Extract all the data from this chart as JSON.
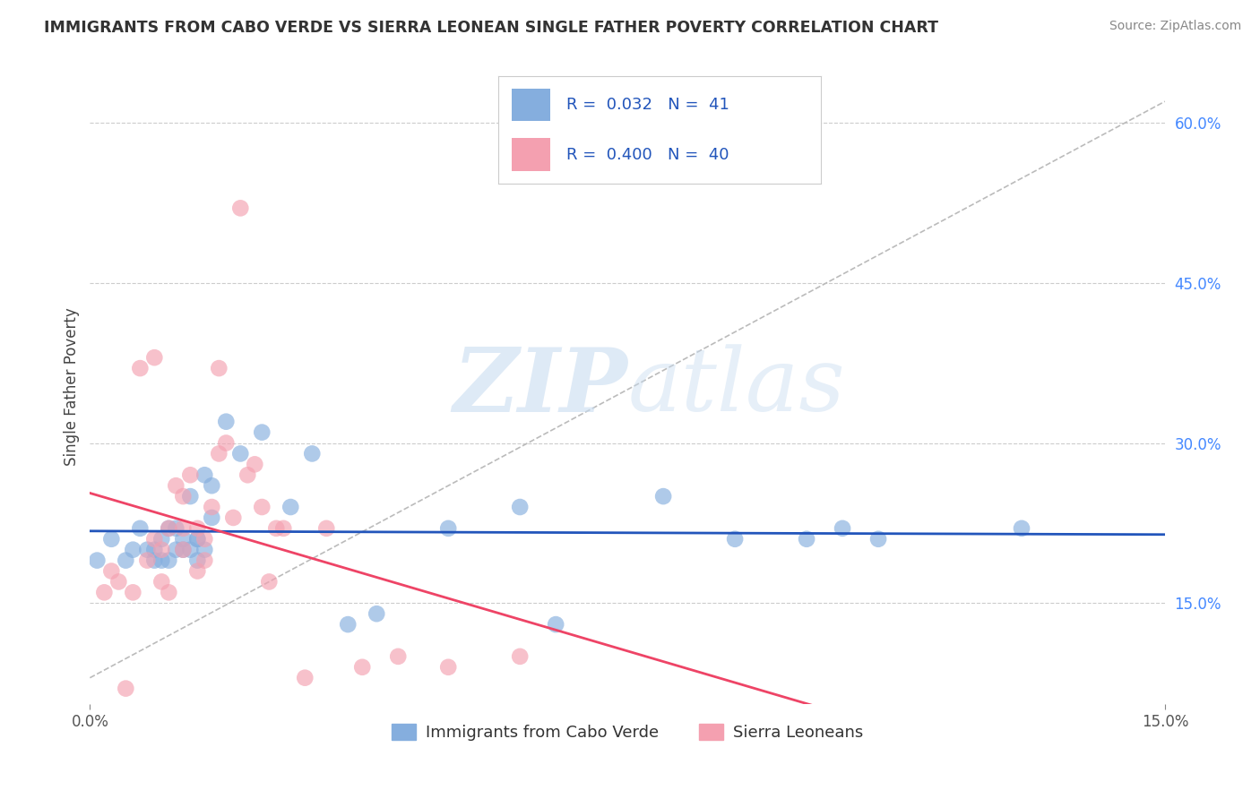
{
  "title": "IMMIGRANTS FROM CABO VERDE VS SIERRA LEONEAN SINGLE FATHER POVERTY CORRELATION CHART",
  "source": "Source: ZipAtlas.com",
  "ylabel": "Single Father Poverty",
  "yticks": [
    "15.0%",
    "30.0%",
    "45.0%",
    "60.0%"
  ],
  "ytick_vals": [
    0.15,
    0.3,
    0.45,
    0.6
  ],
  "xlim": [
    0.0,
    0.15
  ],
  "ylim": [
    0.055,
    0.65
  ],
  "legend_blue_label": "Immigrants from Cabo Verde",
  "legend_pink_label": "Sierra Leoneans",
  "legend_R_blue": "R =  0.032   N =  41",
  "legend_R_pink": "R =  0.400   N =  40",
  "blue_color": "#85AEDE",
  "pink_color": "#F4A0B0",
  "blue_line_color": "#2255BB",
  "pink_line_color": "#EE4466",
  "dashed_line_color": "#BBBBBB",
  "watermark_zip": "ZIP",
  "watermark_atlas": "atlas",
  "cabo_verde_x": [
    0.001,
    0.003,
    0.005,
    0.006,
    0.007,
    0.008,
    0.009,
    0.009,
    0.01,
    0.01,
    0.011,
    0.011,
    0.012,
    0.012,
    0.013,
    0.013,
    0.014,
    0.014,
    0.015,
    0.015,
    0.015,
    0.016,
    0.016,
    0.017,
    0.017,
    0.019,
    0.021,
    0.024,
    0.028,
    0.031,
    0.036,
    0.04,
    0.05,
    0.06,
    0.065,
    0.08,
    0.09,
    0.1,
    0.105,
    0.11,
    0.13
  ],
  "cabo_verde_y": [
    0.19,
    0.21,
    0.19,
    0.2,
    0.22,
    0.2,
    0.19,
    0.2,
    0.19,
    0.21,
    0.19,
    0.22,
    0.2,
    0.22,
    0.2,
    0.21,
    0.25,
    0.2,
    0.21,
    0.19,
    0.21,
    0.27,
    0.2,
    0.23,
    0.26,
    0.32,
    0.29,
    0.31,
    0.24,
    0.29,
    0.13,
    0.14,
    0.22,
    0.24,
    0.13,
    0.25,
    0.21,
    0.21,
    0.22,
    0.21,
    0.22
  ],
  "sierra_leone_x": [
    0.002,
    0.003,
    0.004,
    0.005,
    0.006,
    0.007,
    0.008,
    0.009,
    0.009,
    0.01,
    0.01,
    0.011,
    0.011,
    0.012,
    0.013,
    0.013,
    0.013,
    0.014,
    0.015,
    0.015,
    0.016,
    0.016,
    0.017,
    0.018,
    0.018,
    0.019,
    0.02,
    0.021,
    0.022,
    0.023,
    0.024,
    0.025,
    0.026,
    0.027,
    0.03,
    0.033,
    0.038,
    0.043,
    0.05,
    0.06
  ],
  "sierra_leone_y": [
    0.16,
    0.18,
    0.17,
    0.07,
    0.16,
    0.37,
    0.19,
    0.38,
    0.21,
    0.17,
    0.2,
    0.16,
    0.22,
    0.26,
    0.2,
    0.22,
    0.25,
    0.27,
    0.18,
    0.22,
    0.19,
    0.21,
    0.24,
    0.29,
    0.37,
    0.3,
    0.23,
    0.52,
    0.27,
    0.28,
    0.24,
    0.17,
    0.22,
    0.22,
    0.08,
    0.22,
    0.09,
    0.1,
    0.09,
    0.1
  ]
}
